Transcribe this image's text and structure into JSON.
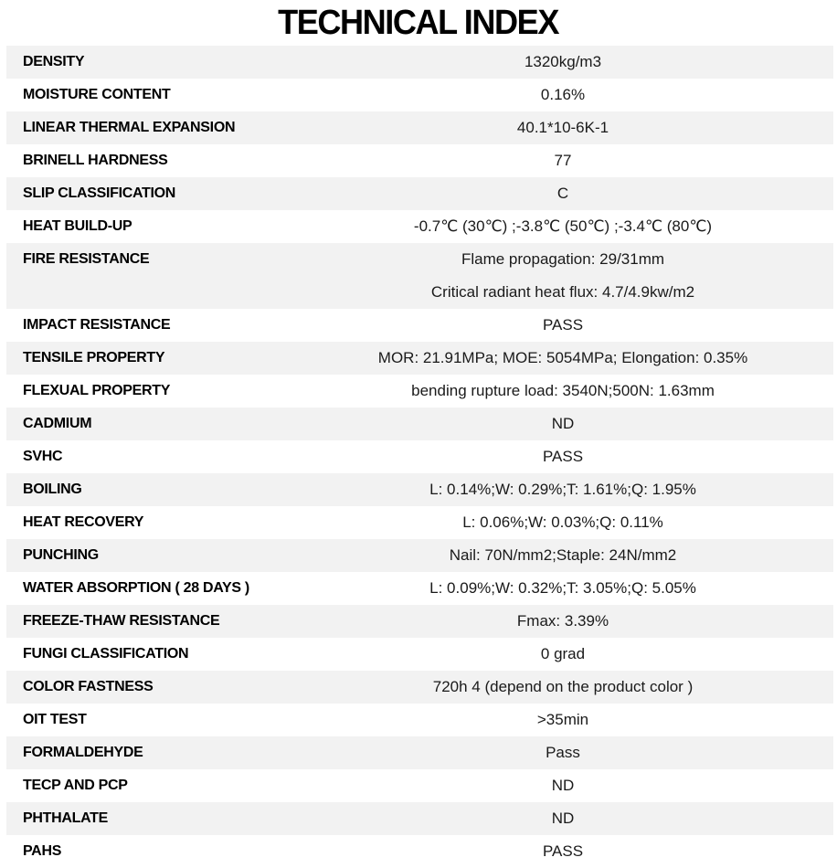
{
  "page_title": "TECHNICAL INDEX",
  "colors": {
    "shaded_row_bg": "#f2f2f2",
    "plain_row_bg": "#ffffff",
    "text_color": "#000000"
  },
  "table": {
    "rows": [
      {
        "label": "DENSITY",
        "values": [
          "1320kg/m3"
        ]
      },
      {
        "label": "MOISTURE CONTENT",
        "values": [
          "0.16%"
        ]
      },
      {
        "label": "LINEAR THERMAL EXPANSION",
        "values": [
          "40.1*10-6K-1"
        ]
      },
      {
        "label": "BRINELL HARDNESS",
        "values": [
          "77"
        ]
      },
      {
        "label": "SLIP CLASSIFICATION",
        "values": [
          "C"
        ]
      },
      {
        "label": "HEAT BUILD-UP",
        "values": [
          "-0.7℃ (30℃) ;-3.8℃ (50℃) ;-3.4℃ (80℃)"
        ]
      },
      {
        "label": "FIRE RESISTANCE",
        "values": [
          "Flame propagation: 29/31mm",
          "Critical radiant heat flux: 4.7/4.9kw/m2"
        ]
      },
      {
        "label": "IMPACT RESISTANCE",
        "values": [
          "PASS"
        ]
      },
      {
        "label": "TENSILE PROPERTY",
        "values": [
          "MOR: 21.91MPa; MOE: 5054MPa; Elongation: 0.35%"
        ]
      },
      {
        "label": "FLEXUAL PROPERTY",
        "values": [
          "bending rupture load: 3540N;500N: 1.63mm"
        ]
      },
      {
        "label": "CADMIUM",
        "values": [
          "ND"
        ]
      },
      {
        "label": "SVHC",
        "values": [
          "PASS"
        ]
      },
      {
        "label": "BOILING",
        "values": [
          "L: 0.14%;W: 0.29%;T: 1.61%;Q: 1.95%"
        ]
      },
      {
        "label": "HEAT RECOVERY",
        "values": [
          "L: 0.06%;W: 0.03%;Q: 0.11%"
        ]
      },
      {
        "label": "PUNCHING",
        "values": [
          "Nail: 70N/mm2;Staple: 24N/mm2"
        ]
      },
      {
        "label": "WATER ABSORPTION ( 28 DAYS )",
        "values": [
          "L: 0.09%;W: 0.32%;T: 3.05%;Q: 5.05%"
        ]
      },
      {
        "label": "FREEZE-THAW RESISTANCE",
        "values": [
          "Fmax: 3.39%"
        ]
      },
      {
        "label": "FUNGI CLASSIFICATION",
        "values": [
          "0 grad"
        ]
      },
      {
        "label": "COLOR FASTNESS",
        "values": [
          "720h 4 (depend on the product color )"
        ]
      },
      {
        "label": "OIT TEST",
        "values": [
          ">35min"
        ]
      },
      {
        "label": "FORMALDEHYDE",
        "values": [
          "Pass"
        ]
      },
      {
        "label": "TECP AND PCP",
        "values": [
          "ND"
        ]
      },
      {
        "label": "PHTHALATE",
        "values": [
          "ND"
        ]
      },
      {
        "label": "PAHS",
        "values": [
          "PASS"
        ]
      }
    ]
  }
}
